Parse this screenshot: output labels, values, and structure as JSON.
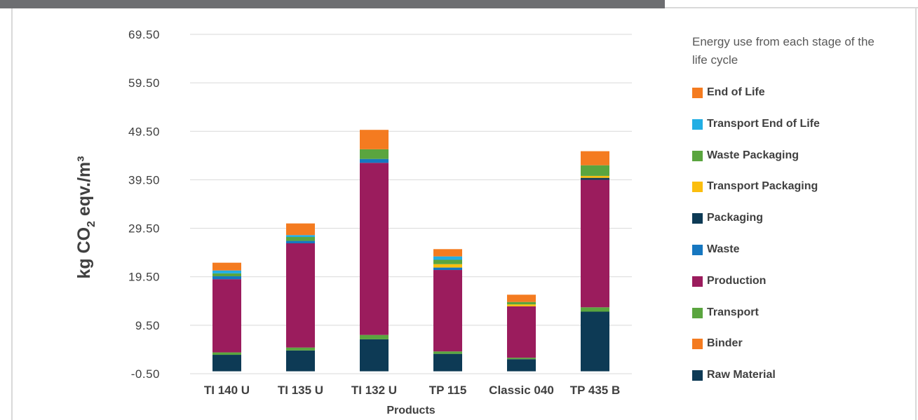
{
  "chart_data": {
    "type": "bar",
    "stacked": true,
    "categories": [
      "TI 140 U",
      "TI 135 U",
      "TI 132 U",
      "TP 115",
      "Classic 040",
      "TP 435 B"
    ],
    "xlabel": "Products",
    "ylabel": "kg CO",
    "ylabel_sub": "2",
    "ylabel_rest": " eqv./m³",
    "ylim": [
      -0.5,
      69.5
    ],
    "yticks": [
      "69.50",
      "59.50",
      "49.50",
      "39.50",
      "29.50",
      "19.50",
      "9.50",
      "-0.50"
    ],
    "yticks_values": [
      69.5,
      59.5,
      49.5,
      39.5,
      29.5,
      19.5,
      9.5,
      -0.5
    ],
    "grid": true,
    "legend_title": "Energy use from each stage of the life cycle",
    "legend_placement": "right",
    "series": [
      {
        "name": "Raw Material",
        "color": "#0d3a55",
        "values": [
          3.4,
          4.3,
          6.6,
          3.6,
          2.5,
          12.3
        ]
      },
      {
        "name": "Binder",
        "color": "#f47b20",
        "values": [
          0,
          0,
          0,
          0,
          0,
          0
        ]
      },
      {
        "name": "Transport",
        "color": "#5aa53f",
        "values": [
          0.5,
          0.6,
          0.9,
          0.5,
          0.3,
          0.9
        ]
      },
      {
        "name": "Production",
        "color": "#9b1c5d",
        "values": [
          15.1,
          21.5,
          35.5,
          16.8,
          10.6,
          26.3
        ]
      },
      {
        "name": "Waste",
        "color": "#1677c0",
        "values": [
          0.6,
          0.5,
          0.8,
          0.5,
          0,
          0
        ]
      },
      {
        "name": "Packaging",
        "color": "#0d3a55",
        "values": [
          0,
          0,
          0,
          0,
          0,
          0.4
        ]
      },
      {
        "name": "Transport Packaging",
        "color": "#fbbe0e",
        "values": [
          0,
          0,
          0,
          0.7,
          0.4,
          0.4
        ]
      },
      {
        "name": "Waste Packaging",
        "color": "#5aa53f",
        "values": [
          0.6,
          0.8,
          2.0,
          0.9,
          0.5,
          2.2
        ]
      },
      {
        "name": "Transport End of Life",
        "color": "#22aee4",
        "values": [
          0.6,
          0.4,
          0,
          0.7,
          0,
          0
        ]
      },
      {
        "name": "End of Life",
        "color": "#f47b20",
        "values": [
          1.6,
          2.4,
          4.0,
          1.5,
          1.5,
          2.9
        ]
      }
    ]
  }
}
